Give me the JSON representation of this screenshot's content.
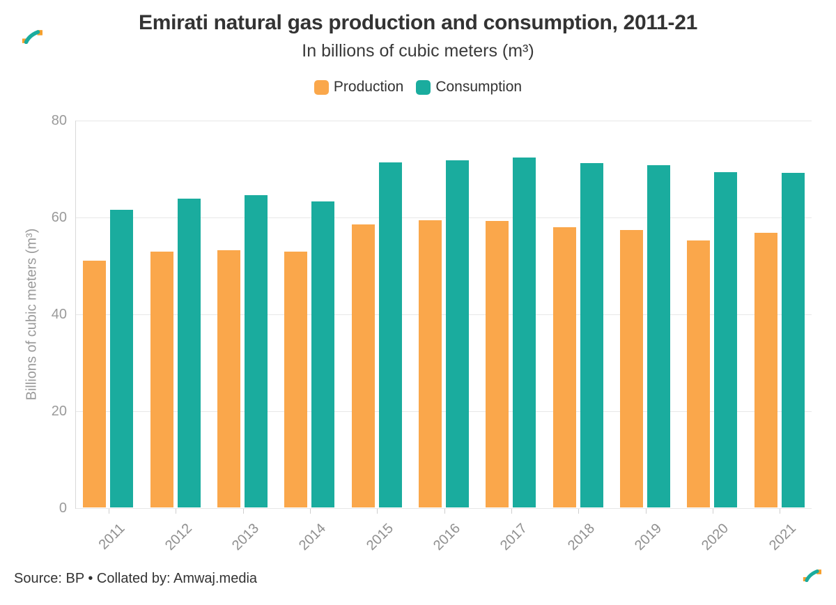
{
  "chart_data": {
    "type": "bar",
    "title": "Emirati natural gas production and consumption, 2011-21",
    "subtitle": "In billions of cubic meters (m³)",
    "categories": [
      "2011",
      "2012",
      "2013",
      "2014",
      "2015",
      "2016",
      "2017",
      "2018",
      "2019",
      "2020",
      "2021"
    ],
    "series": [
      {
        "name": "Production",
        "color": "#FAA74B",
        "values": [
          51.0,
          52.9,
          53.2,
          52.9,
          58.5,
          59.4,
          59.3,
          58.0,
          57.4,
          55.3,
          56.8
        ]
      },
      {
        "name": "Consumption",
        "color": "#1AAC9E",
        "values": [
          61.6,
          63.9,
          64.6,
          63.3,
          71.4,
          71.8,
          72.4,
          71.2,
          70.8,
          69.4,
          69.2
        ]
      }
    ],
    "xlabel": "",
    "ylabel": "Billions of cubic meters (m³)",
    "ylim": [
      0,
      80
    ],
    "yticks": [
      0,
      20,
      40,
      60,
      80
    ],
    "grid": true,
    "legend_position": "top"
  },
  "footer": {
    "source": "Source: BP • Collated by: Amwaj.media"
  },
  "brand": {
    "orange": "#F6A02D",
    "teal": "#1AAC9E"
  }
}
